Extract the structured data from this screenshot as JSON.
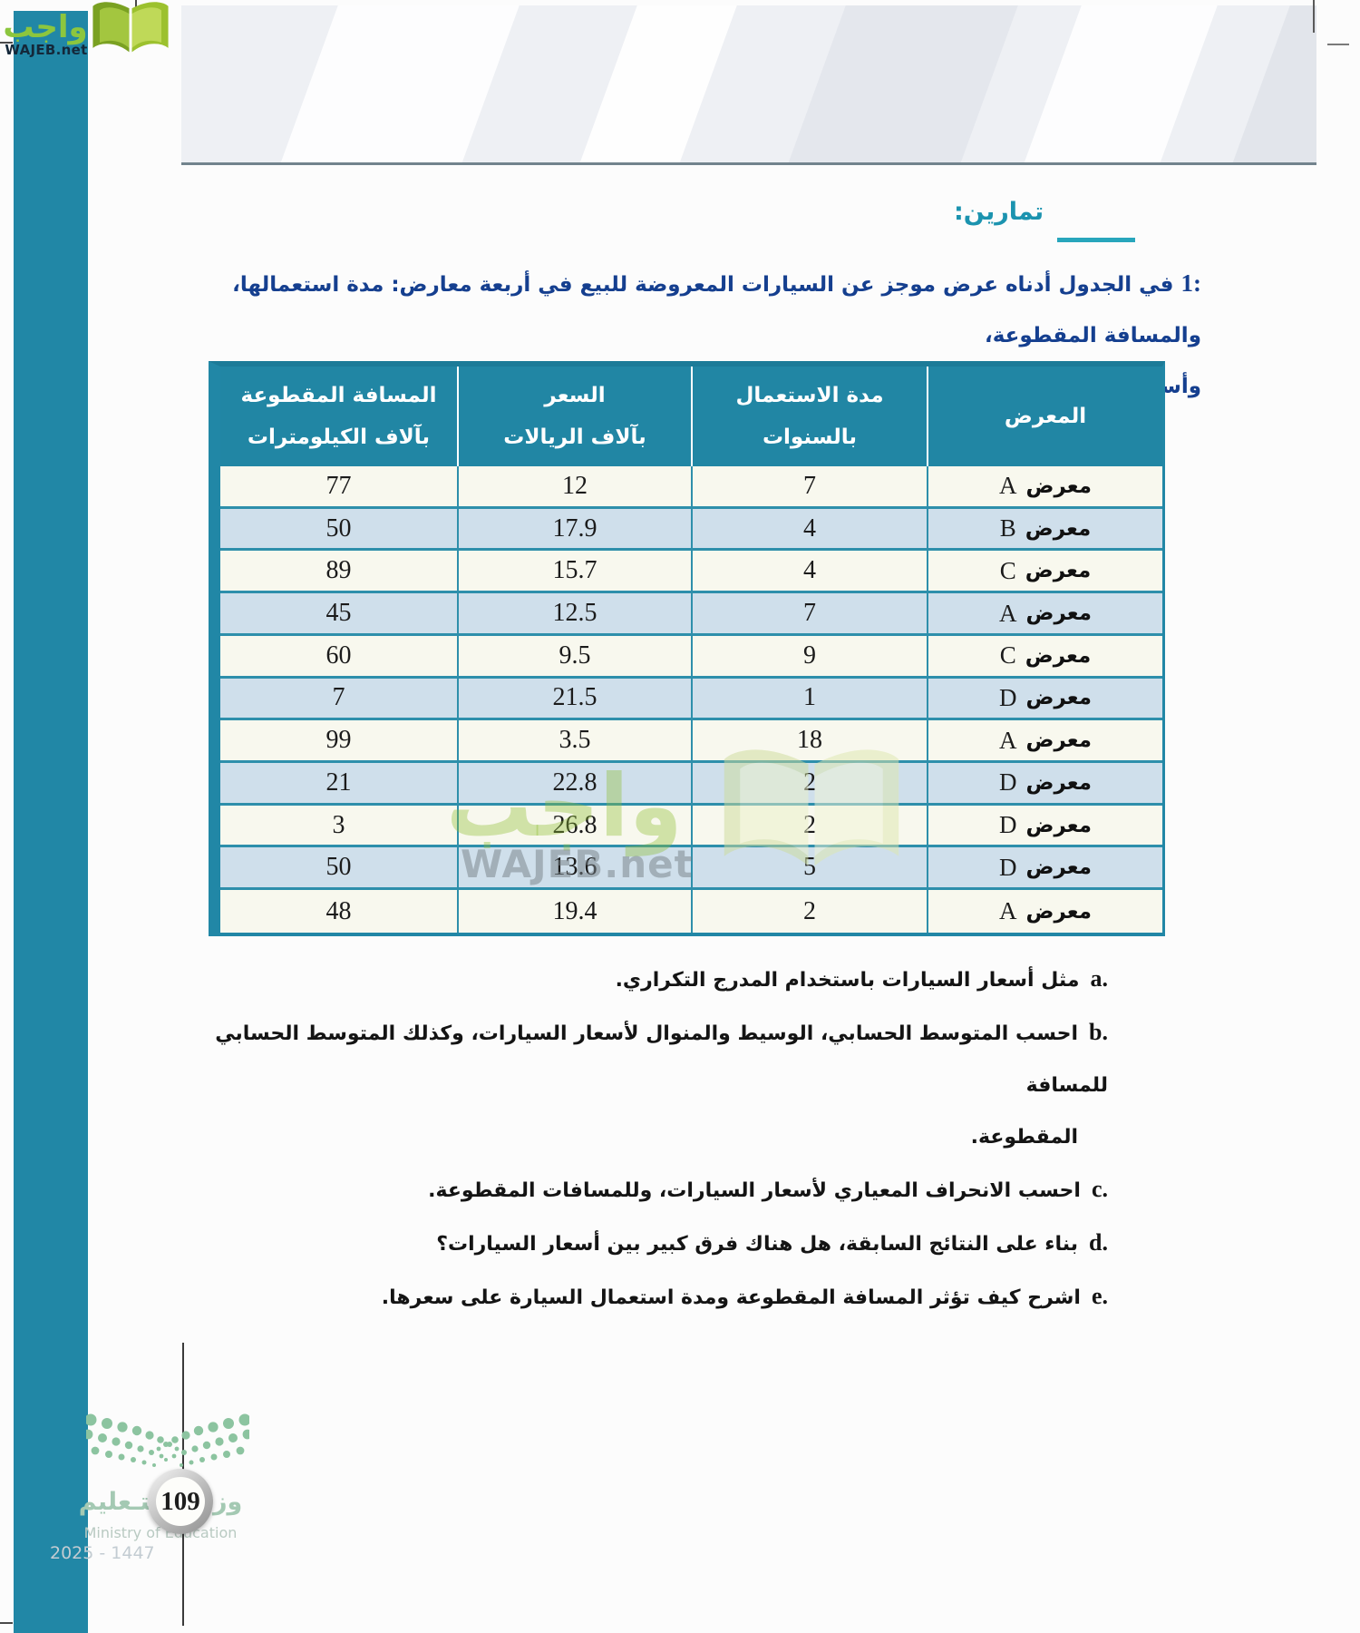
{
  "colors": {
    "accent_teal": "#2187a6",
    "header_teal": "#2186a4",
    "row_cream": "#f8f8ee",
    "row_blue": "#cfdfeb",
    "table_border": "#2e8fab",
    "title_teal": "#1b93af",
    "problem_navy": "#153f8f",
    "brand_green": "#8cc63e",
    "ministry_green": "#a4c9b3"
  },
  "brand": {
    "wordmark_ar": "واجب",
    "site": "WAJEB.net"
  },
  "page": {
    "title": "تمارين:"
  },
  "problem": {
    "number": "1:",
    "line1": "في الجدول أدناه عرض موجز عن السيارات المعروضة للبيع في أربعة معارض: مدة استعمالها، والمسافة المقطوعة،",
    "line2": "وأسعارها."
  },
  "table": {
    "headers": [
      {
        "line1": "المعرض",
        "line2": ""
      },
      {
        "line1": "مدة الاستعمال",
        "line2": "بالسنوات"
      },
      {
        "line1": "السعر",
        "line2": "بآلاف الريالات"
      },
      {
        "line1": "المسافة المقطوعة",
        "line2": "بآلاف الكيلومترات"
      }
    ],
    "rows": [
      {
        "showroom_label": "معرض",
        "showroom_letter": "A",
        "years": "7",
        "price": "12",
        "distance": "77"
      },
      {
        "showroom_label": "معرض",
        "showroom_letter": "B",
        "years": "4",
        "price": "17.9",
        "distance": "50"
      },
      {
        "showroom_label": "معرض",
        "showroom_letter": "C",
        "years": "4",
        "price": "15.7",
        "distance": "89"
      },
      {
        "showroom_label": "معرض",
        "showroom_letter": "A",
        "years": "7",
        "price": "12.5",
        "distance": "45"
      },
      {
        "showroom_label": "معرض",
        "showroom_letter": "C",
        "years": "9",
        "price": "9.5",
        "distance": "60"
      },
      {
        "showroom_label": "معرض",
        "showroom_letter": "D",
        "years": "1",
        "price": "21.5",
        "distance": "7"
      },
      {
        "showroom_label": "معرض",
        "showroom_letter": "A",
        "years": "18",
        "price": "3.5",
        "distance": "99"
      },
      {
        "showroom_label": "معرض",
        "showroom_letter": "D",
        "years": "2",
        "price": "22.8",
        "distance": "21"
      },
      {
        "showroom_label": "معرض",
        "showroom_letter": "D",
        "years": "2",
        "price": "26.8",
        "distance": "3"
      },
      {
        "showroom_label": "معرض",
        "showroom_letter": "D",
        "years": "5",
        "price": "13.6",
        "distance": "50"
      },
      {
        "showroom_label": "معرض",
        "showroom_letter": "A",
        "years": "2",
        "price": "19.4",
        "distance": "48"
      }
    ]
  },
  "questions": [
    {
      "letter": "a.",
      "lines": [
        "مثل أسعار السيارات باستخدام المدرج التكراري."
      ]
    },
    {
      "letter": "b.",
      "lines": [
        "احسب المتوسط الحسابي، الوسيط والمنوال لأسعار السيارات، وكذلك المتوسط الحسابي للمسافة",
        "المقطوعة."
      ]
    },
    {
      "letter": "c.",
      "lines": [
        "احسب الانحراف المعياري لأسعار السيارات، وللمسافات المقطوعة."
      ]
    },
    {
      "letter": "d.",
      "lines": [
        "بناء على النتائج السابقة، هل هناك فرق كبير بين أسعار السيارات؟"
      ]
    },
    {
      "letter": "e.",
      "lines": [
        "اشرح كيف تؤثر المسافة المقطوعة ومدة استعمال السيارة على سعرها."
      ]
    }
  ],
  "watermark": {
    "wordmark_ar": "واجب",
    "site": "WAJEB.net"
  },
  "footer": {
    "page_number": "109",
    "ministry_ar": "وزارة التـعليم",
    "ministry_en": "Ministry of Education",
    "edition": "2025 - 1447"
  }
}
